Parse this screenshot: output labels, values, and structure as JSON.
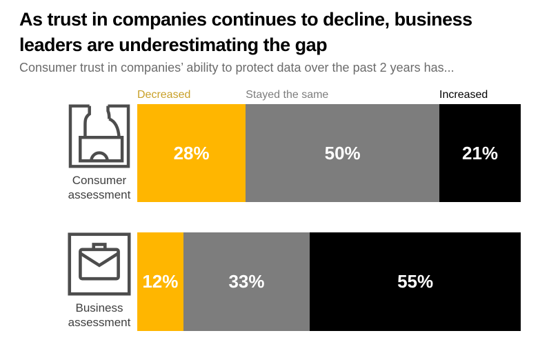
{
  "title": "As trust in companies continues to decline, business leaders are underestimating the gap",
  "title_lines": [
    "As trust in companies continues to decline, business",
    "leaders are underestimating the gap"
  ],
  "subtitle": "Consumer trust in companies’ ability to protect data over the past 2 years has...",
  "colors": {
    "decreased": "#FFB600",
    "stayed": "#7D7D7D",
    "increased": "#000000",
    "legend_decreased_text": "#C8A028",
    "icon_stroke": "#4d4d4d",
    "category_text": "#3f3f3f"
  },
  "chart_data": {
    "type": "bar",
    "variant": "horizontal-stacked",
    "unit": "%",
    "title": "As trust in companies continues to decline, business leaders are underestimating the gap",
    "subtitle": "Consumer trust in companies’ ability to protect data over the past 2 years has...",
    "legend_position": "top",
    "value_label_format": "{value}%",
    "categories": [
      "Consumer assessment",
      "Business assessment"
    ],
    "series": [
      {
        "name": "Decreased",
        "color": "#FFB600",
        "legend_text_color": "#C8A028",
        "values": [
          28,
          12
        ]
      },
      {
        "name": "Stayed the same",
        "color": "#7D7D7D",
        "legend_text_color": "#7D7D7D",
        "values": [
          50,
          33
        ]
      },
      {
        "name": "Increased",
        "color": "#000000",
        "legend_text_color": "#000000",
        "values": [
          21,
          55
        ]
      }
    ],
    "rows": [
      {
        "icon": "consumer-icon",
        "label_lines": [
          "Consumer",
          "assessment"
        ]
      },
      {
        "icon": "business-icon",
        "label_lines": [
          "Business",
          "assessment"
        ]
      }
    ]
  }
}
